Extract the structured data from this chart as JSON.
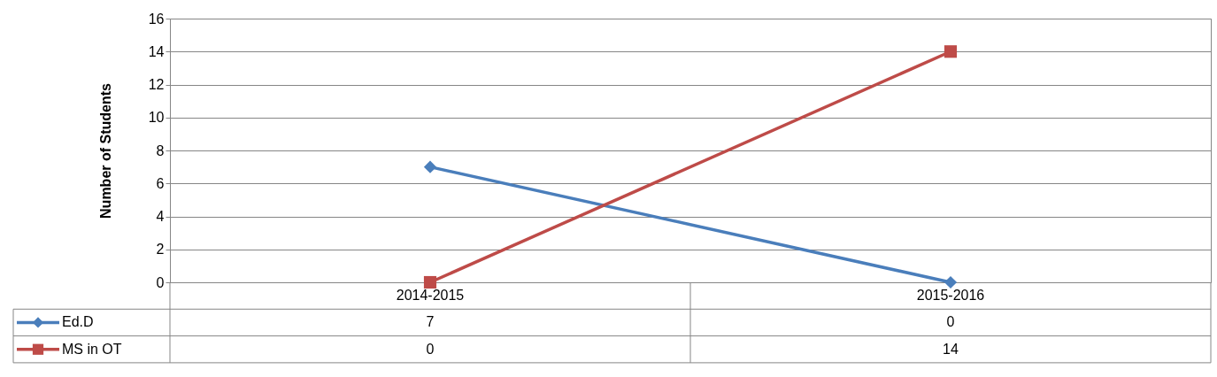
{
  "chart_data": {
    "type": "line",
    "ylabel": "Number of Students",
    "categories": [
      "2014-2015",
      "2015-2016"
    ],
    "ylim": [
      0,
      16
    ],
    "yticks": [
      0,
      2,
      4,
      6,
      8,
      10,
      12,
      14,
      16
    ],
    "grid": "y",
    "data_labels": true,
    "legend": "bottom left",
    "series": [
      {
        "name": "Ed.D",
        "color": "#4a7ebb",
        "marker": "diamond",
        "values": [
          7,
          0
        ]
      },
      {
        "name": "MS in OT",
        "color": "#be4b48",
        "marker": "square",
        "values": [
          0,
          14
        ]
      }
    ]
  }
}
